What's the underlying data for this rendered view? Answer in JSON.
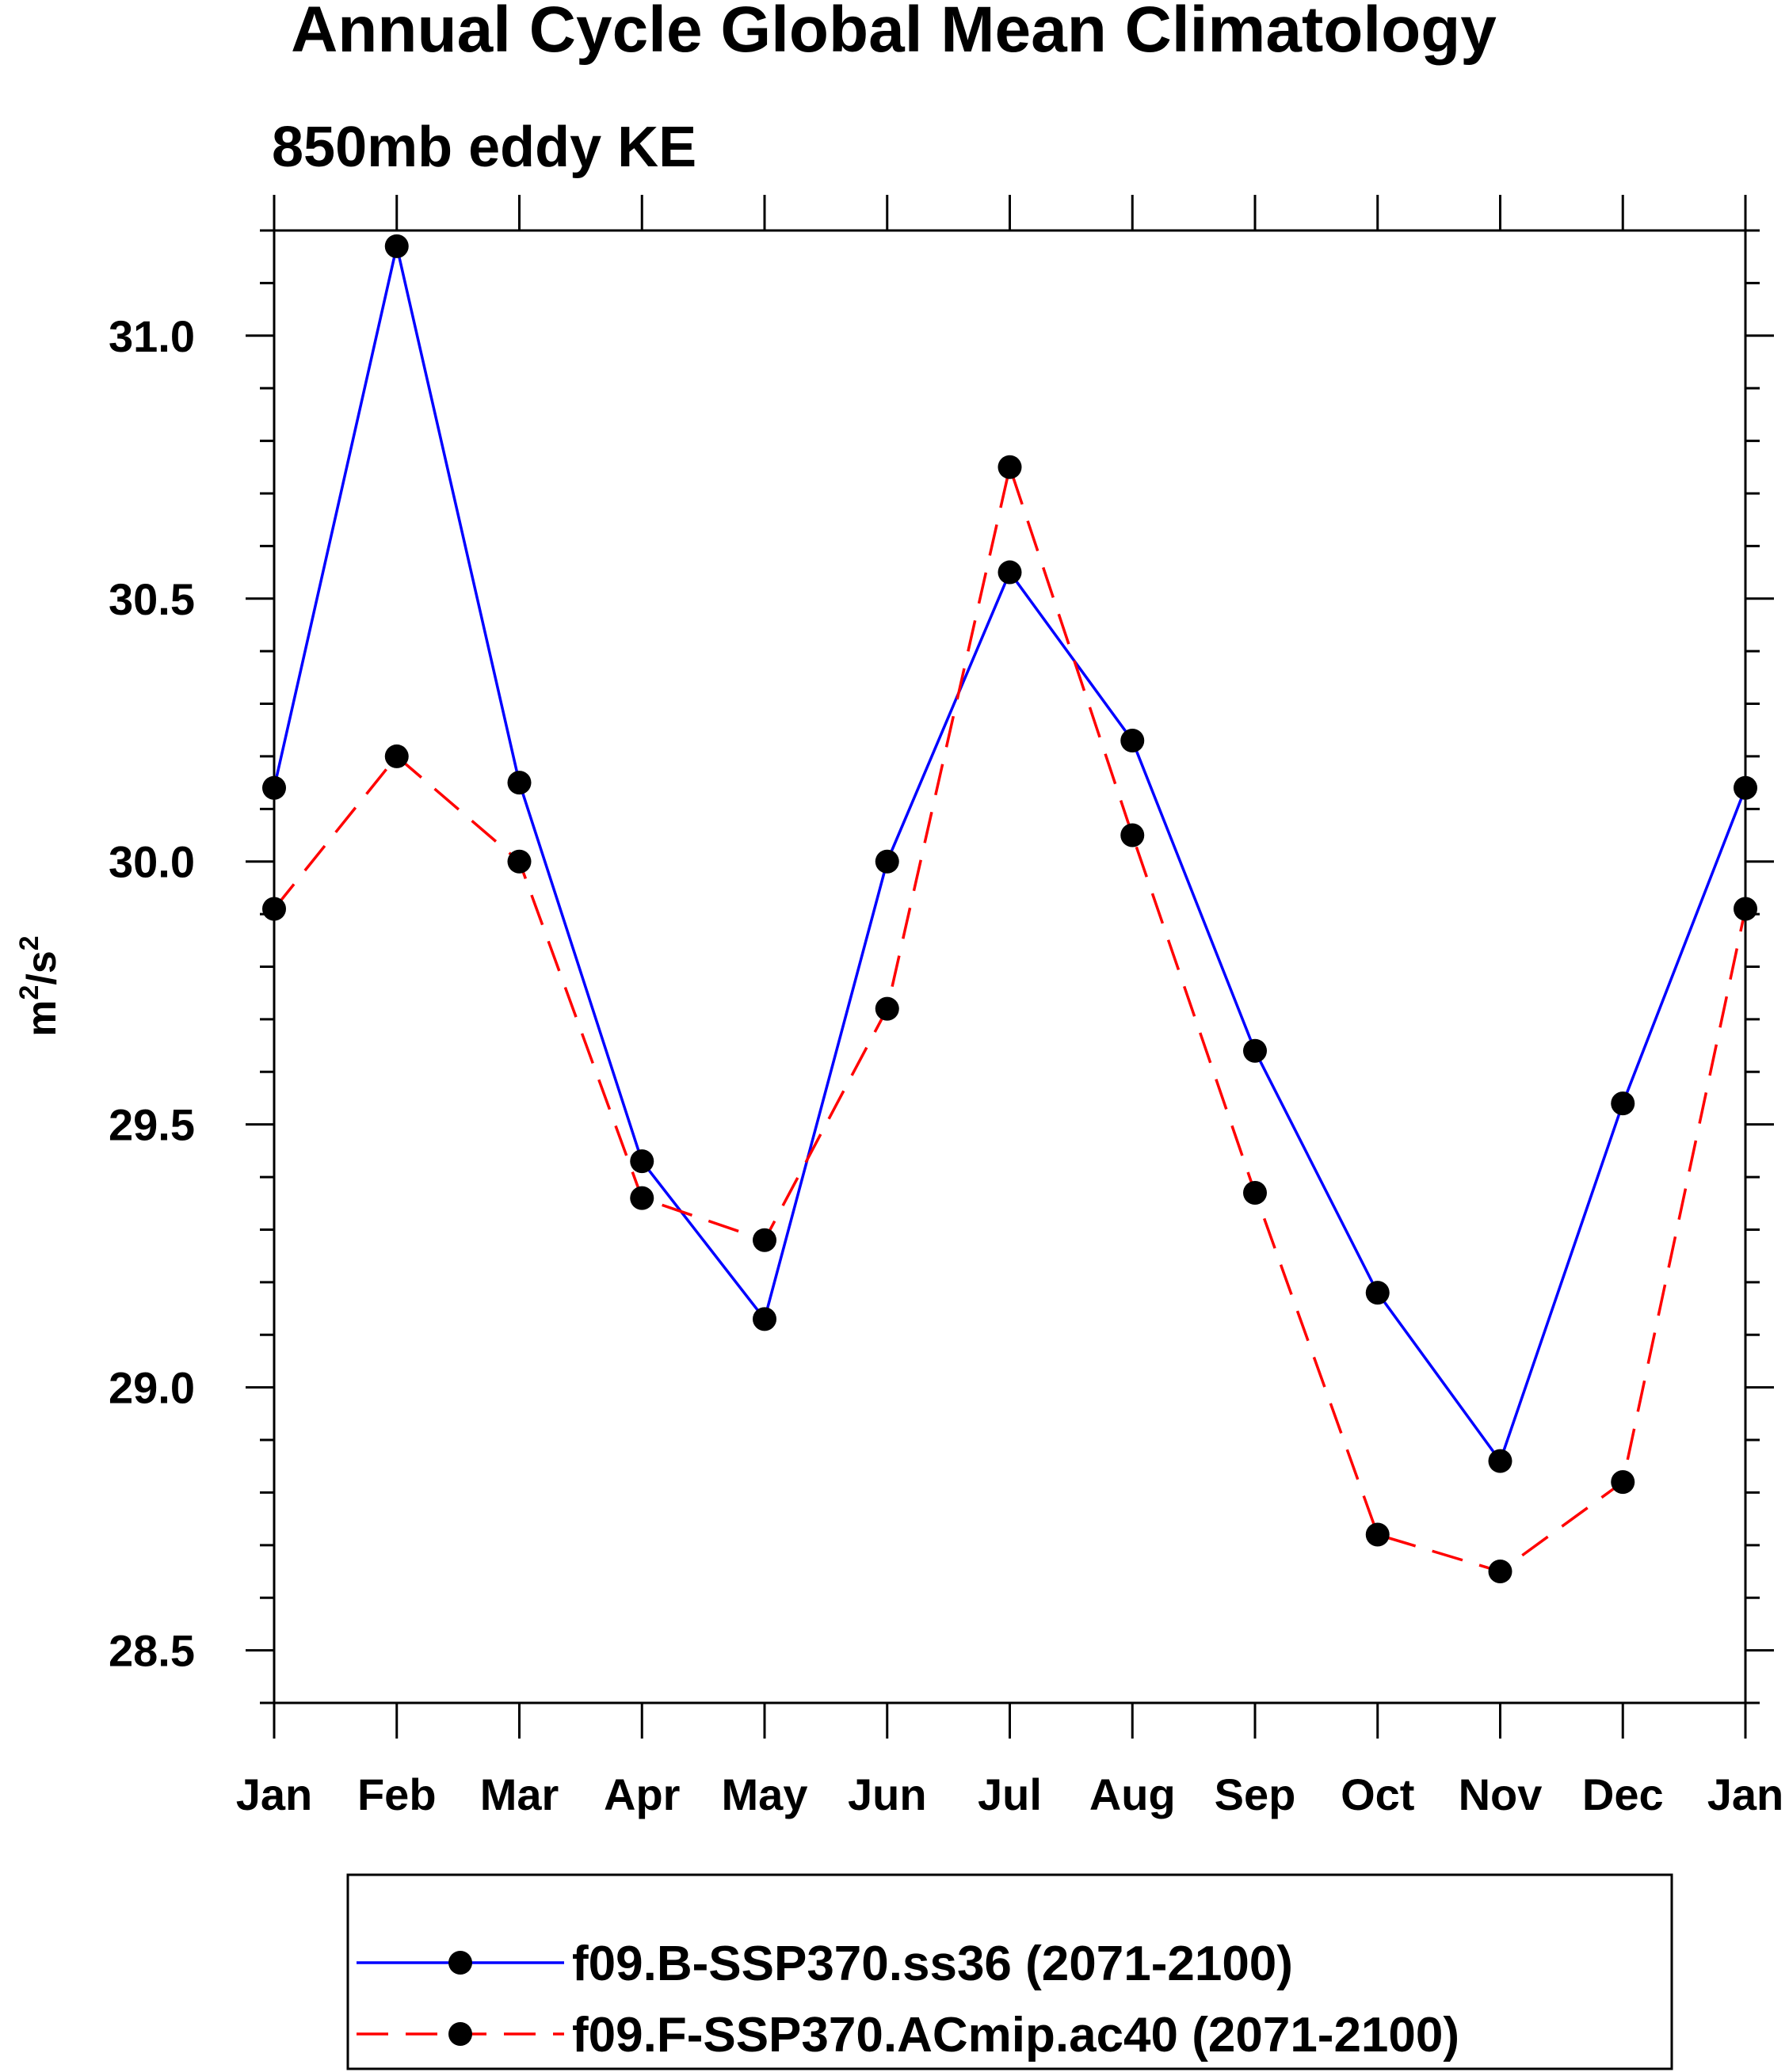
{
  "chart_data": {
    "type": "line",
    "title": "Annual Cycle Global Mean Climatology",
    "subtitle": "850mb eddy KE",
    "ylabel_base": "m",
    "ylabel_exp1": "2",
    "ylabel_mid": "/s",
    "ylabel_exp2": "2",
    "categories": [
      "Jan",
      "Feb",
      "Mar",
      "Apr",
      "May",
      "Jun",
      "Jul",
      "Aug",
      "Sep",
      "Oct",
      "Nov",
      "Dec",
      "Jan"
    ],
    "ylim": [
      28.4,
      31.2
    ],
    "yticks": [
      28.5,
      29.0,
      29.5,
      30.0,
      30.5,
      31.0
    ],
    "ytick_labels": [
      "28.5",
      "29.0",
      "29.5",
      "30.0",
      "30.5",
      "31.0"
    ],
    "series": [
      {
        "name": "f09.B-SSP370.ss36 (2071-2100)",
        "color": "#0000ff",
        "dash": "solid",
        "values": [
          30.14,
          31.17,
          30.15,
          29.43,
          29.13,
          30.0,
          30.55,
          30.23,
          29.64,
          29.18,
          28.86,
          29.54,
          30.14
        ]
      },
      {
        "name": "f09.F-SSP370.ACmip.ac40 (2071-2100)",
        "color": "#ff0000",
        "dash": "dashed",
        "values": [
          29.91,
          30.2,
          30.0,
          29.36,
          29.28,
          29.72,
          30.75,
          30.05,
          29.37,
          28.72,
          28.65,
          28.82,
          29.91
        ]
      }
    ]
  }
}
